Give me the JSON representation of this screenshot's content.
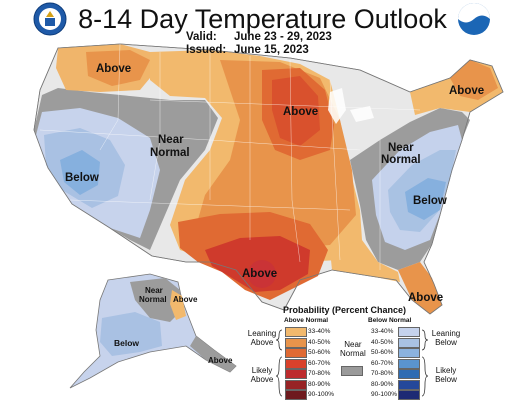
{
  "header": {
    "title": "8-14 Day Temperature Outlook",
    "valid_label": "Valid:",
    "valid_value": "June 23 - 29, 2023",
    "issued_label": "Issued:",
    "issued_value": "June 15, 2023",
    "left_logo_icon": "doc-seal-icon",
    "right_logo_icon": "noaa-logo-icon"
  },
  "map_labels": {
    "nw_above": "Above",
    "near_normal_west_1": "Near",
    "near_normal_west_2": "Normal",
    "west_below": "Below",
    "midwest_above": "Above",
    "ne_above": "Above",
    "near_normal_east_1": "Near",
    "near_normal_east_2": "Normal",
    "se_below": "Below",
    "south_above": "Above",
    "florida_above": "Above",
    "ak_near_1": "Near",
    "ak_near_2": "Normal",
    "ak_above": "Above",
    "ak_below": "Below",
    "ak_se_above": "Above"
  },
  "legend": {
    "title": "Probability (Percent Chance)",
    "above_header": "Above Normal",
    "below_header": "Below Normal",
    "near_normal_1": "Near",
    "near_normal_2": "Normal",
    "leaning_above_1": "Leaning",
    "leaning_above_2": "Above",
    "likely_above_1": "Likely",
    "likely_above_2": "Above",
    "leaning_below_1": "Leaning",
    "leaning_below_2": "Below",
    "likely_below_1": "Likely",
    "likely_below_2": "Below",
    "ranges": [
      "33-40%",
      "40-50%",
      "50-60%",
      "60-70%",
      "70-80%",
      "80-90%",
      "90-100%"
    ],
    "above_colors": [
      "#f2b96d",
      "#e8944b",
      "#e06a33",
      "#d9412b",
      "#bd2b2d",
      "#972325",
      "#6e1a1e"
    ],
    "below_colors": [
      "#c5d2ec",
      "#a9c2e3",
      "#8bb2de",
      "#5a94cf",
      "#2f6cb3",
      "#24489a",
      "#1d2a74"
    ],
    "near_color": "#9a9a9a"
  }
}
